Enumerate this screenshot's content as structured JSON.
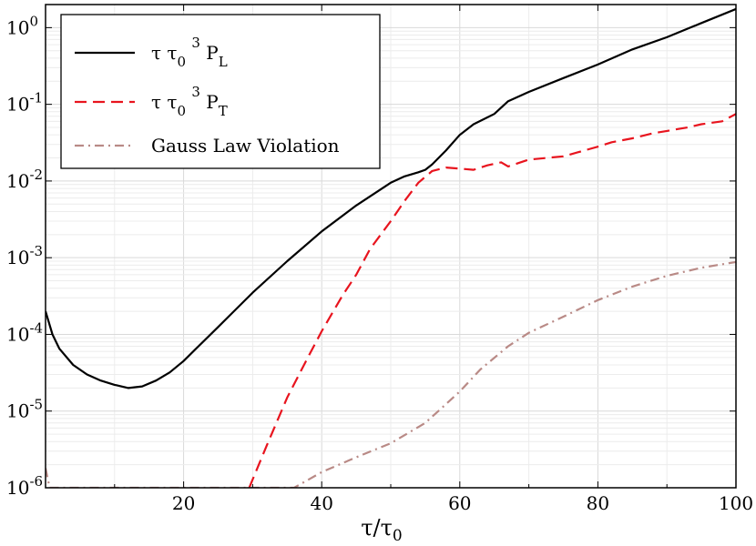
{
  "chart_data": {
    "type": "line",
    "title": "",
    "xlabel": {
      "base": "τ/τ",
      "sub": "0"
    },
    "ylabel": "",
    "xlim": [
      0,
      100
    ],
    "ylim": [
      1e-06,
      2
    ],
    "yscale": "log",
    "grid": true,
    "x_ticks": [
      20,
      40,
      60,
      80,
      100
    ],
    "y_ticks": [
      {
        "value": 1e-06,
        "base": "10",
        "exp": "-6"
      },
      {
        "value": 1e-05,
        "base": "10",
        "exp": "-5"
      },
      {
        "value": 0.0001,
        "base": "10",
        "exp": "-4"
      },
      {
        "value": 0.001,
        "base": "10",
        "exp": "-3"
      },
      {
        "value": 0.01,
        "base": "10",
        "exp": "-2"
      },
      {
        "value": 0.1,
        "base": "10",
        "exp": "-1"
      },
      {
        "value": 1,
        "base": "10",
        "exp": "0"
      }
    ],
    "legend": {
      "placement": "top-left",
      "entries": [
        {
          "series": 0,
          "parts": [
            {
              "t": "τ τ"
            },
            {
              "t": "0",
              "sub": true
            },
            {
              "t": " "
            },
            {
              "t": "3",
              "sup": true
            },
            {
              "t": " P"
            },
            {
              "t": "L",
              "sub": true
            }
          ]
        },
        {
          "series": 1,
          "parts": [
            {
              "t": "τ τ"
            },
            {
              "t": "0",
              "sub": true
            },
            {
              "t": " "
            },
            {
              "t": "3",
              "sup": true
            },
            {
              "t": " P"
            },
            {
              "t": "T",
              "sub": true
            }
          ]
        },
        {
          "series": 2,
          "parts": [
            {
              "t": "Gauss Law Violation"
            }
          ]
        }
      ]
    },
    "series": [
      {
        "name": "τ τ0^3 P_L",
        "color": "#000000",
        "dash": "solid",
        "points": [
          [
            0,
            0.0002
          ],
          [
            1,
            0.0001
          ],
          [
            2,
            6.5e-05
          ],
          [
            4,
            4e-05
          ],
          [
            6,
            3e-05
          ],
          [
            8,
            2.5e-05
          ],
          [
            10,
            2.2e-05
          ],
          [
            12,
            2e-05
          ],
          [
            14,
            2.1e-05
          ],
          [
            16,
            2.5e-05
          ],
          [
            18,
            3.2e-05
          ],
          [
            20,
            4.5e-05
          ],
          [
            22,
            6.8e-05
          ],
          [
            25,
            0.000125
          ],
          [
            30,
            0.00035
          ],
          [
            35,
            0.0009
          ],
          [
            40,
            0.0022
          ],
          [
            45,
            0.0048
          ],
          [
            50,
            0.0095
          ],
          [
            52,
            0.0115
          ],
          [
            54,
            0.013
          ],
          [
            55,
            0.014
          ],
          [
            56,
            0.0165
          ],
          [
            58,
            0.025
          ],
          [
            60,
            0.04
          ],
          [
            62,
            0.055
          ],
          [
            65,
            0.075
          ],
          [
            67,
            0.11
          ],
          [
            70,
            0.145
          ],
          [
            75,
            0.22
          ],
          [
            80,
            0.33
          ],
          [
            85,
            0.52
          ],
          [
            90,
            0.75
          ],
          [
            95,
            1.15
          ],
          [
            100,
            1.75
          ]
        ]
      },
      {
        "name": "τ τ0^3 P_T",
        "color": "#e8141e",
        "dash": "dashed",
        "points": [
          [
            29.5,
            1e-06
          ],
          [
            32,
            3.5e-06
          ],
          [
            35,
            1.5e-05
          ],
          [
            38,
            5e-05
          ],
          [
            40,
            0.00011
          ],
          [
            43,
            0.00032
          ],
          [
            45,
            0.0006
          ],
          [
            47,
            0.0013
          ],
          [
            50,
            0.003
          ],
          [
            52,
            0.0055
          ],
          [
            54,
            0.0095
          ],
          [
            56,
            0.0135
          ],
          [
            58,
            0.015
          ],
          [
            60,
            0.0145
          ],
          [
            62,
            0.014
          ],
          [
            64,
            0.016
          ],
          [
            66,
            0.0175
          ],
          [
            67,
            0.0155
          ],
          [
            70,
            0.019
          ],
          [
            75,
            0.021
          ],
          [
            80,
            0.028
          ],
          [
            82,
            0.032
          ],
          [
            85,
            0.036
          ],
          [
            88,
            0.042
          ],
          [
            90,
            0.045
          ],
          [
            93,
            0.05
          ],
          [
            95,
            0.055
          ],
          [
            98,
            0.06
          ],
          [
            100,
            0.075
          ]
        ]
      },
      {
        "name": "Gauss Law Violation",
        "color": "#b98a86",
        "dash": "dashdot",
        "points": [
          [
            0,
            1.8e-06
          ],
          [
            0.6,
            1e-06
          ],
          [
            36,
            1e-06
          ],
          [
            40,
            1.6e-06
          ],
          [
            45,
            2.5e-06
          ],
          [
            50,
            3.8e-06
          ],
          [
            55,
            7e-06
          ],
          [
            60,
            1.8e-05
          ],
          [
            63,
            3.5e-05
          ],
          [
            67,
            7e-05
          ],
          [
            70,
            0.000105
          ],
          [
            75,
            0.00017
          ],
          [
            80,
            0.00028
          ],
          [
            85,
            0.00042
          ],
          [
            90,
            0.00058
          ],
          [
            95,
            0.00074
          ],
          [
            100,
            0.00088
          ]
        ]
      }
    ]
  }
}
